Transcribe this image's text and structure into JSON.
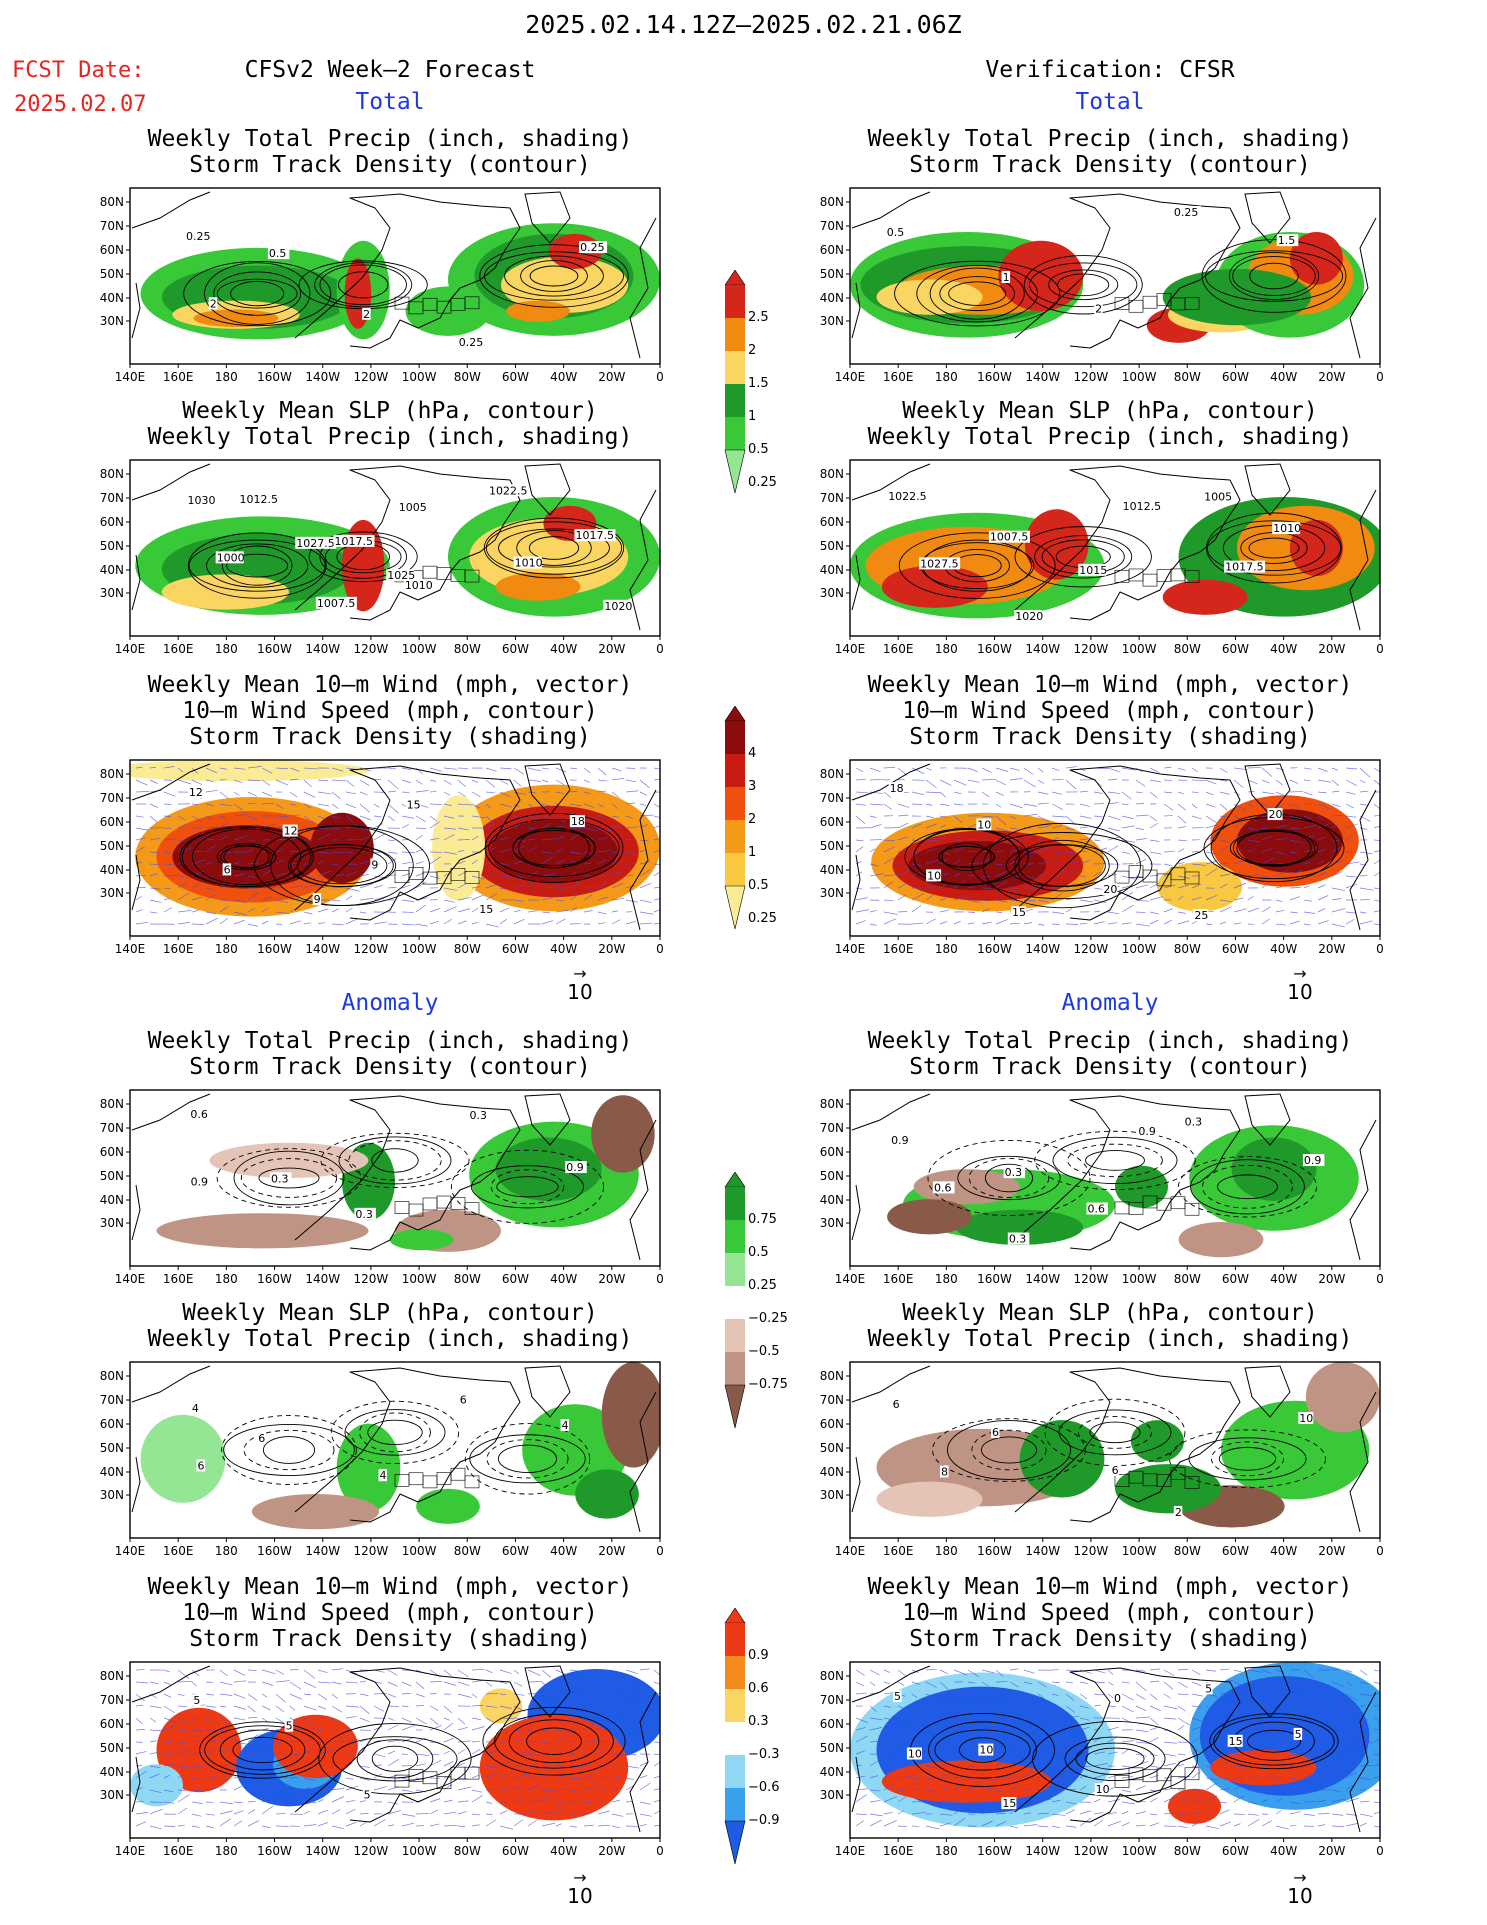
{
  "header": {
    "date_range": "2025.02.14.12Z–2025.02.21.06Z",
    "fcst_label": "FCST Date:",
    "fcst_date": "2025.02.07",
    "left_title": "CFSv2 Week–2 Forecast",
    "right_title": "Verification: CFSR"
  },
  "sections": {
    "total": "Total",
    "anomaly": "Anomaly"
  },
  "panel_titles": {
    "precip_track": [
      "Weekly Total Precip (inch, shading)",
      "Storm Track Density (contour)"
    ],
    "slp_precip": [
      "Weekly Mean SLP (hPa, contour)",
      "Weekly Total Precip (inch, shading)"
    ],
    "wind_track": [
      "Weekly Mean 10–m Wind (mph, vector)",
      "10–m Wind Speed (mph, contour)",
      "Storm Track Density (shading)"
    ]
  },
  "axes": {
    "lat_ticks": [
      "80N",
      "70N",
      "60N",
      "50N",
      "40N",
      "30N"
    ],
    "lon_ticks": [
      "140E",
      "160E",
      "180",
      "160W",
      "140W",
      "120W",
      "100W",
      "80W",
      "60W",
      "40W",
      "20W",
      "0"
    ]
  },
  "vector_ref": "10",
  "colorbars": {
    "precip_total": {
      "labels": [
        "2.5",
        "2",
        "1.5",
        "1",
        "0.5",
        "0.25"
      ],
      "colors": [
        "#d4261a",
        "#f08a10",
        "#fbd561",
        "#1f9a2a",
        "#38c838",
        "#94e694"
      ]
    },
    "track_total": {
      "labels": [
        "4",
        "3",
        "2",
        "1",
        "0.5",
        "0.25"
      ],
      "colors": [
        "#8a0c0c",
        "#c81c12",
        "#f0500c",
        "#f59a18",
        "#f8c840",
        "#fbeb94"
      ]
    },
    "precip_anom": {
      "labels": [
        "0.75",
        "0.5",
        "0.25",
        "−0.25",
        "−0.5",
        "−0.75"
      ],
      "colors": [
        "#1f9a2a",
        "#38c838",
        "#94e694",
        "#ffffff",
        "#e4c4b6",
        "#c09484",
        "#8a5a48"
      ]
    },
    "track_anom": {
      "labels": [
        "0.9",
        "0.6",
        "0.3",
        "−0.3",
        "−0.6",
        "−0.9"
      ],
      "colors": [
        "#ee3a14",
        "#f48a1c",
        "#fbd561",
        "#ffffff",
        "#8ed8f4",
        "#3aa0ee",
        "#1e5ce6"
      ]
    }
  },
  "contour_labels": {
    "f_precip_total": [
      "0.25",
      "0.5",
      "2",
      "0.25",
      "0.25",
      "2"
    ],
    "v_precip_total": [
      "0.5",
      "1",
      "2",
      "0.25",
      "1.5"
    ],
    "f_slp_total": [
      "1030",
      "1027.5",
      "1025",
      "1022.5",
      "1017.5",
      "1000",
      "1007.5",
      "1005",
      "1010",
      "1020",
      "1012.5",
      "1017.5",
      "1010"
    ],
    "v_slp_total": [
      "1022.5",
      "1007.5",
      "1015",
      "1005",
      "1010",
      "1027.5",
      "1020",
      "1012.5",
      "1017.5"
    ],
    "f_wind_total": [
      "12",
      "12",
      "9",
      "15",
      "18",
      "6",
      "9",
      "15"
    ],
    "v_wind_total": [
      "18",
      "10",
      "20",
      "25",
      "20",
      "10",
      "15"
    ],
    "f_precip_anom": [
      "0.6",
      "0.3",
      "0.3",
      "0.3",
      "0.9",
      "0.9"
    ],
    "v_precip_anom": [
      "0.9",
      "0.3",
      "0.6",
      "0.3",
      "0.9",
      "0.6",
      "0.3",
      "0.9"
    ],
    "f_slp_anom": [
      "4",
      "6",
      "4",
      "6",
      "4",
      "6"
    ],
    "v_slp_anom": [
      "6",
      "6",
      "6",
      "2",
      "10",
      "8"
    ],
    "f_wind_anom": [
      "5",
      "5",
      "5"
    ],
    "v_wind_anom": [
      "5",
      "10",
      "10",
      "5",
      "5",
      "10",
      "15",
      "0",
      "15"
    ]
  }
}
